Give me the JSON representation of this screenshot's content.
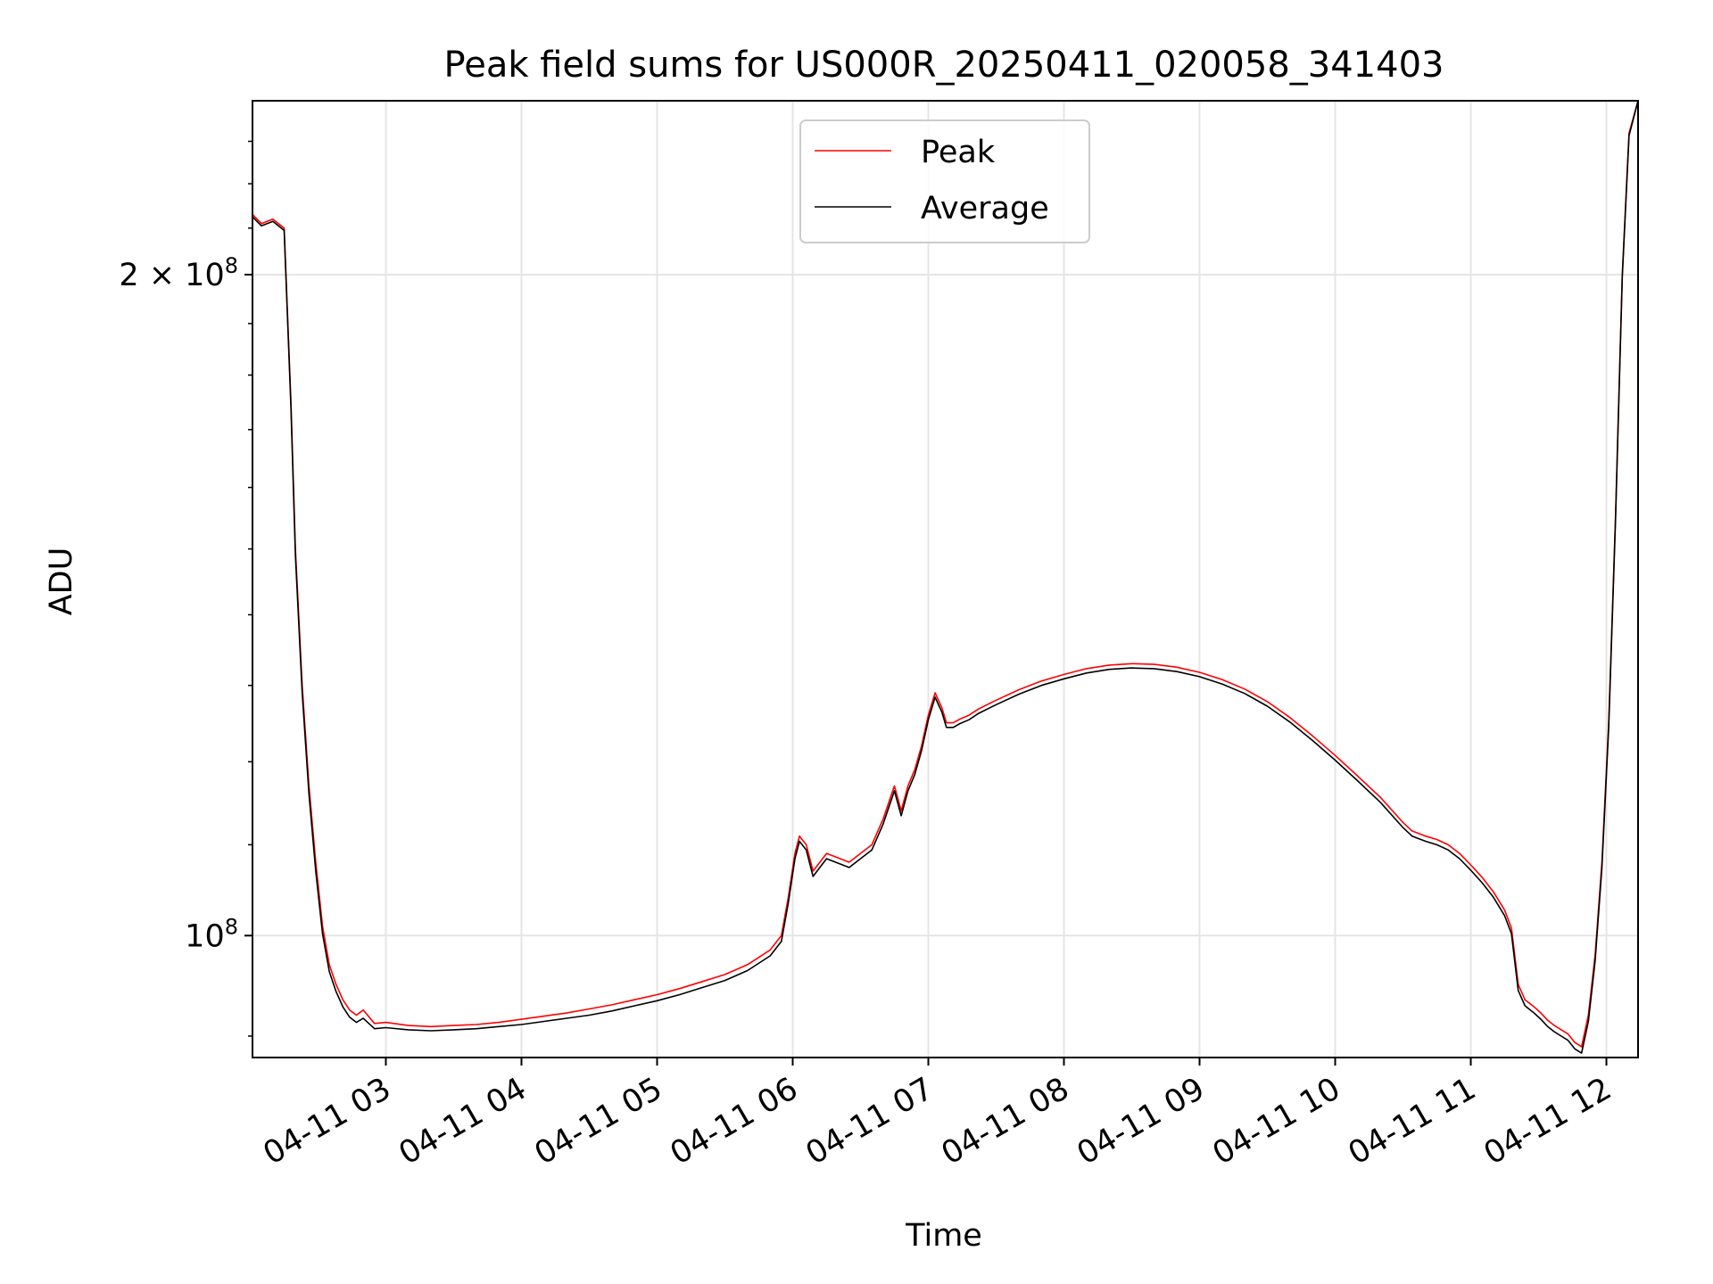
{
  "chart_data": {
    "type": "line",
    "title": "Peak field sums for US000R_20250411_020058_341403",
    "xlabel": "Time",
    "ylabel": "ADU",
    "y_scale": "log",
    "ylim": [
      88000000,
      240000000
    ],
    "xlim": [
      "2025-04-11 02:01",
      "2025-04-11 12:14"
    ],
    "grid": true,
    "legend_position": "upper center",
    "x_ticks": [
      {
        "value": "2025-04-11 03:00",
        "label": "04-11 03"
      },
      {
        "value": "2025-04-11 04:00",
        "label": "04-11 04"
      },
      {
        "value": "2025-04-11 05:00",
        "label": "04-11 05"
      },
      {
        "value": "2025-04-11 06:00",
        "label": "04-11 06"
      },
      {
        "value": "2025-04-11 07:00",
        "label": "04-11 07"
      },
      {
        "value": "2025-04-11 08:00",
        "label": "04-11 08"
      },
      {
        "value": "2025-04-11 09:00",
        "label": "04-11 09"
      },
      {
        "value": "2025-04-11 10:00",
        "label": "04-11 10"
      },
      {
        "value": "2025-04-11 11:00",
        "label": "04-11 11"
      },
      {
        "value": "2025-04-11 12:00",
        "label": "04-11 12"
      }
    ],
    "y_ticks": [
      {
        "value": 100000000,
        "base": "10",
        "exp": "8",
        "prefix": ""
      },
      {
        "value": 200000000,
        "base": "10",
        "exp": "8",
        "prefix": "2 × "
      }
    ],
    "series": [
      {
        "name": "Peak",
        "color": "#ff0000",
        "x": [
          "02:01",
          "02:05",
          "02:10",
          "02:15",
          "02:18",
          "02:20",
          "02:23",
          "02:26",
          "02:29",
          "02:32",
          "02:35",
          "02:38",
          "02:41",
          "02:44",
          "02:47",
          "02:50",
          "02:55",
          "03:00",
          "03:10",
          "03:20",
          "03:30",
          "03:40",
          "03:50",
          "04:00",
          "04:10",
          "04:20",
          "04:30",
          "04:40",
          "04:50",
          "05:00",
          "05:10",
          "05:20",
          "05:30",
          "05:40",
          "05:50",
          "05:55",
          "05:58",
          "06:01",
          "06:03",
          "06:06",
          "06:09",
          "06:12",
          "06:15",
          "06:20",
          "06:25",
          "06:30",
          "06:35",
          "06:40",
          "06:45",
          "06:48",
          "06:51",
          "06:54",
          "06:57",
          "07:00",
          "07:03",
          "07:06",
          "07:08",
          "07:11",
          "07:14",
          "07:18",
          "07:22",
          "07:30",
          "07:40",
          "07:50",
          "08:00",
          "08:10",
          "08:20",
          "08:30",
          "08:40",
          "08:50",
          "09:00",
          "09:10",
          "09:20",
          "09:30",
          "09:40",
          "09:50",
          "10:00",
          "10:10",
          "10:20",
          "10:30",
          "10:34",
          "10:40",
          "10:45",
          "10:50",
          "10:55",
          "11:00",
          "11:05",
          "11:10",
          "11:15",
          "11:18",
          "11:21",
          "11:24",
          "11:28",
          "11:31",
          "11:34",
          "11:37",
          "11:40",
          "11:43",
          "11:46",
          "11:49",
          "11:52",
          "11:55",
          "11:58",
          "12:01",
          "12:04",
          "12:07",
          "12:10",
          "12:14"
        ],
        "y": [
          213000000,
          211000000,
          212000000,
          210000000,
          175000000,
          150000000,
          130000000,
          117000000,
          108000000,
          101000000,
          97000000,
          95000000,
          93500000,
          92500000,
          92000000,
          92500000,
          91200000,
          91300000,
          91000000,
          90900000,
          91000000,
          91100000,
          91300000,
          91600000,
          91900000,
          92200000,
          92600000,
          93000000,
          93500000,
          94000000,
          94600000,
          95300000,
          96000000,
          97000000,
          98500000,
          100000000,
          104000000,
          109000000,
          111000000,
          110000000,
          107000000,
          108000000,
          109000000,
          108500000,
          108000000,
          109000000,
          110000000,
          113000000,
          117000000,
          114000000,
          117000000,
          119000000,
          122000000,
          126000000,
          129000000,
          127000000,
          125000000,
          125000000,
          125500000,
          126000000,
          126800000,
          128000000,
          129400000,
          130600000,
          131500000,
          132300000,
          132800000,
          133000000,
          132900000,
          132500000,
          131800000,
          130800000,
          129500000,
          127800000,
          125700000,
          123300000,
          120800000,
          118200000,
          115600000,
          112600000,
          111600000,
          111000000,
          110600000,
          110000000,
          109000000,
          107700000,
          106300000,
          104700000,
          102700000,
          100800000,
          95000000,
          93500000,
          92800000,
          92200000,
          91500000,
          91000000,
          90600000,
          90200000,
          89400000,
          89000000,
          92000000,
          98000000,
          108000000,
          125000000,
          155000000,
          200000000,
          232000000,
          240000000
        ]
      },
      {
        "name": "Average",
        "color": "#000000",
        "x": [
          "02:01",
          "02:05",
          "02:10",
          "02:15",
          "02:18",
          "02:20",
          "02:23",
          "02:26",
          "02:29",
          "02:32",
          "02:35",
          "02:38",
          "02:41",
          "02:44",
          "02:47",
          "02:50",
          "02:55",
          "03:00",
          "03:10",
          "03:20",
          "03:30",
          "03:40",
          "03:50",
          "04:00",
          "04:10",
          "04:20",
          "04:30",
          "04:40",
          "04:50",
          "05:00",
          "05:10",
          "05:20",
          "05:30",
          "05:40",
          "05:50",
          "05:55",
          "05:58",
          "06:01",
          "06:03",
          "06:06",
          "06:09",
          "06:12",
          "06:15",
          "06:20",
          "06:25",
          "06:30",
          "06:35",
          "06:40",
          "06:45",
          "06:48",
          "06:51",
          "06:54",
          "06:57",
          "07:00",
          "07:03",
          "07:06",
          "07:08",
          "07:11",
          "07:14",
          "07:18",
          "07:22",
          "07:30",
          "07:40",
          "07:50",
          "08:00",
          "08:10",
          "08:20",
          "08:30",
          "08:40",
          "08:50",
          "09:00",
          "09:10",
          "09:20",
          "09:30",
          "09:40",
          "09:50",
          "10:00",
          "10:10",
          "10:20",
          "10:30",
          "10:34",
          "10:40",
          "10:45",
          "10:50",
          "10:55",
          "11:00",
          "11:05",
          "11:10",
          "11:15",
          "11:18",
          "11:21",
          "11:24",
          "11:28",
          "11:31",
          "11:34",
          "11:37",
          "11:40",
          "11:43",
          "11:46",
          "11:49",
          "11:52",
          "11:55",
          "11:58",
          "12:01",
          "12:04",
          "12:07",
          "12:10",
          "12:14"
        ],
        "y": [
          212500000,
          210500000,
          211500000,
          209500000,
          174000000,
          149000000,
          129000000,
          116000000,
          107000000,
          100200000,
          96300000,
          94300000,
          92800000,
          91800000,
          91300000,
          91700000,
          90700000,
          90800000,
          90600000,
          90500000,
          90600000,
          90700000,
          90900000,
          91100000,
          91400000,
          91700000,
          92000000,
          92400000,
          92900000,
          93400000,
          94000000,
          94700000,
          95400000,
          96400000,
          97900000,
          99400000,
          103400000,
          108400000,
          110400000,
          109400000,
          106400000,
          107400000,
          108400000,
          107900000,
          107400000,
          108400000,
          109400000,
          112400000,
          116400000,
          113400000,
          116400000,
          118400000,
          121400000,
          125400000,
          128400000,
          126400000,
          124400000,
          124400000,
          124900000,
          125400000,
          126200000,
          127400000,
          128800000,
          130000000,
          130900000,
          131700000,
          132200000,
          132400000,
          132300000,
          131900000,
          131200000,
          130200000,
          128900000,
          127200000,
          125100000,
          122700000,
          120200000,
          117600000,
          115000000,
          112000000,
          111000000,
          110400000,
          110000000,
          109400000,
          108400000,
          107100000,
          105700000,
          104100000,
          102100000,
          100200000,
          94400000,
          92900000,
          92200000,
          91600000,
          90900000,
          90400000,
          90000000,
          89600000,
          88800000,
          88400000,
          91400000,
          97400000,
          107400000,
          124400000,
          154400000,
          199400000,
          231400000,
          240000000
        ]
      }
    ]
  }
}
